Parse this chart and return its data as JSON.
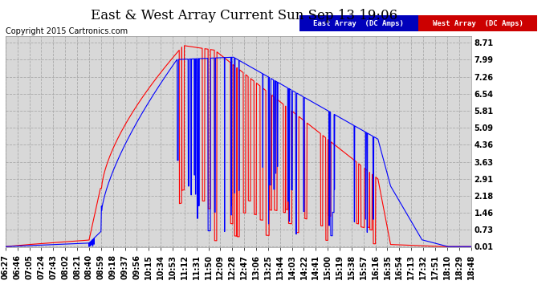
{
  "title": "East & West Array Current Sun Sep 13 19:06",
  "copyright": "Copyright 2015 Cartronics.com",
  "legend_east": "East Array  (DC Amps)",
  "legend_west": "West Array  (DC Amps)",
  "east_color": "#0000ff",
  "west_color": "#ff0000",
  "legend_east_bg": "#0000bb",
  "legend_west_bg": "#cc0000",
  "plot_bg": "#d8d8d8",
  "background_color": "#ffffff",
  "grid_color": "#aaaaaa",
  "yticks": [
    0.01,
    0.73,
    1.46,
    2.18,
    2.91,
    3.63,
    4.36,
    5.09,
    5.81,
    6.54,
    7.26,
    7.99,
    8.71
  ],
  "ylim": [
    0.0,
    9.0
  ],
  "title_fontsize": 12,
  "tick_fontsize": 7,
  "copyright_fontsize": 7,
  "xtick_labels": [
    "06:27",
    "06:46",
    "07:05",
    "07:24",
    "07:43",
    "08:02",
    "08:21",
    "08:40",
    "08:59",
    "09:18",
    "09:37",
    "09:56",
    "10:15",
    "10:34",
    "10:53",
    "11:12",
    "11:31",
    "11:50",
    "12:09",
    "12:28",
    "12:47",
    "13:06",
    "13:25",
    "13:44",
    "14:03",
    "14:22",
    "14:41",
    "15:00",
    "15:19",
    "15:38",
    "15:57",
    "16:16",
    "16:35",
    "16:54",
    "17:13",
    "17:32",
    "17:51",
    "18:10",
    "18:29",
    "18:48"
  ]
}
